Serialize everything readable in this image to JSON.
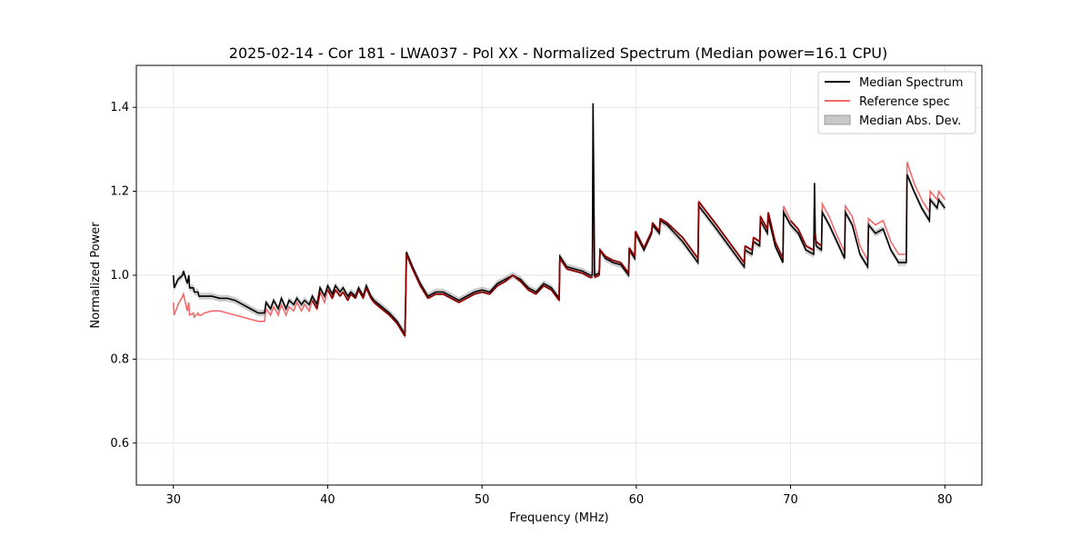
{
  "chart_data": {
    "type": "line",
    "title": "2025-02-14 - Cor 181 - LWA037 - Pol XX - Normalized Spectrum (Median power=16.1 CPU)",
    "xlabel": "Frequency (MHz)",
    "ylabel": "Normalized Power",
    "xlim": [
      27.6,
      82.4
    ],
    "ylim": [
      0.5,
      1.5
    ],
    "xticks": [
      30,
      40,
      50,
      60,
      70,
      80
    ],
    "yticks": [
      0.6,
      0.8,
      1.0,
      1.2,
      1.4
    ],
    "xtick_labels": [
      "30",
      "40",
      "50",
      "60",
      "70",
      "80"
    ],
    "ytick_labels": [
      "0.6",
      "0.8",
      "1.0",
      "1.2",
      "1.4"
    ],
    "grid": true,
    "legend_position": "top-right",
    "legend": [
      {
        "label": "Median Spectrum",
        "color": "#000000",
        "kind": "line"
      },
      {
        "label": "Reference spec",
        "color": "#f26b6b",
        "kind": "line"
      },
      {
        "label": "Median Abs. Dev.",
        "color": "#c8c8c8",
        "kind": "patch"
      }
    ],
    "mad_halfwidth": 0.008,
    "series": [
      {
        "name": "Median Spectrum",
        "color": "#000000",
        "x": [
          30.0,
          30.05,
          30.3,
          30.6,
          30.65,
          30.9,
          31.0,
          31.05,
          31.3,
          31.35,
          31.6,
          31.65,
          31.8,
          32.0,
          32.5,
          33.0,
          33.5,
          34.0,
          34.5,
          35.0,
          35.5,
          35.9,
          36.0,
          36.3,
          36.5,
          36.8,
          37.0,
          37.3,
          37.5,
          37.8,
          38.0,
          38.3,
          38.5,
          38.8,
          39.0,
          39.3,
          39.5,
          39.8,
          40.0,
          40.3,
          40.5,
          40.8,
          41.0,
          41.3,
          41.5,
          41.8,
          42.0,
          42.3,
          42.5,
          42.8,
          43.0,
          43.5,
          44.0,
          44.5,
          45.0,
          45.05,
          45.1,
          45.5,
          46.0,
          46.5,
          47.0,
          47.5,
          48.0,
          48.5,
          49.0,
          49.5,
          50.0,
          50.5,
          51.0,
          51.5,
          52.0,
          52.5,
          53.0,
          53.5,
          54.0,
          54.5,
          55.0,
          55.05,
          55.5,
          56.0,
          56.5,
          57.0,
          57.15,
          57.2,
          57.25,
          57.3,
          57.6,
          57.65,
          58.0,
          58.5,
          59.0,
          59.5,
          59.55,
          59.9,
          59.95,
          60.5,
          61.0,
          61.05,
          61.5,
          61.55,
          62.0,
          63.0,
          64.0,
          64.05,
          65.0,
          66.0,
          67.0,
          67.05,
          67.5,
          67.6,
          68.0,
          68.05,
          68.5,
          68.55,
          69.0,
          69.5,
          69.55,
          70.0,
          70.5,
          71.0,
          71.5,
          71.55,
          71.6,
          71.65,
          72.0,
          72.05,
          72.5,
          73.0,
          73.5,
          73.55,
          74.0,
          74.5,
          75.0,
          75.05,
          75.5,
          76.0,
          76.5,
          77.0,
          77.5,
          77.55,
          78.0,
          78.5,
          79.0,
          79.05,
          79.5,
          79.6,
          80.0
        ],
        "y": [
          1.0,
          0.97,
          0.99,
          1.0,
          1.01,
          0.98,
          1.0,
          0.97,
          0.97,
          0.96,
          0.96,
          0.95,
          0.95,
          0.95,
          0.95,
          0.945,
          0.945,
          0.94,
          0.93,
          0.92,
          0.91,
          0.91,
          0.935,
          0.92,
          0.94,
          0.92,
          0.945,
          0.92,
          0.94,
          0.93,
          0.945,
          0.93,
          0.94,
          0.93,
          0.95,
          0.93,
          0.97,
          0.95,
          0.975,
          0.955,
          0.975,
          0.96,
          0.97,
          0.95,
          0.96,
          0.95,
          0.97,
          0.95,
          0.975,
          0.95,
          0.94,
          0.925,
          0.91,
          0.89,
          0.86,
          0.93,
          1.055,
          1.02,
          0.98,
          0.95,
          0.96,
          0.96,
          0.95,
          0.94,
          0.95,
          0.96,
          0.965,
          0.96,
          0.98,
          0.99,
          1.0,
          0.99,
          0.97,
          0.96,
          0.98,
          0.97,
          0.945,
          1.045,
          1.02,
          1.015,
          1.01,
          1.0,
          1.0,
          1.41,
          1.2,
          1.0,
          1.005,
          1.06,
          1.04,
          1.03,
          1.025,
          1.0,
          1.06,
          1.04,
          1.1,
          1.06,
          1.1,
          1.12,
          1.1,
          1.13,
          1.12,
          1.08,
          1.03,
          1.165,
          1.12,
          1.07,
          1.02,
          1.06,
          1.05,
          1.08,
          1.07,
          1.13,
          1.1,
          1.14,
          1.07,
          1.03,
          1.15,
          1.12,
          1.1,
          1.06,
          1.05,
          1.22,
          1.09,
          1.07,
          1.06,
          1.15,
          1.12,
          1.08,
          1.04,
          1.15,
          1.12,
          1.05,
          1.02,
          1.12,
          1.1,
          1.11,
          1.06,
          1.03,
          1.03,
          1.24,
          1.2,
          1.16,
          1.13,
          1.18,
          1.16,
          1.18,
          1.16
        ]
      },
      {
        "name": "Reference spec",
        "color": "#f26b6b",
        "x": [
          30.0,
          30.05,
          30.3,
          30.6,
          30.65,
          30.9,
          31.0,
          31.05,
          31.3,
          31.35,
          31.6,
          31.65,
          31.8,
          32.0,
          32.5,
          33.0,
          33.5,
          34.0,
          34.5,
          35.0,
          35.5,
          35.9,
          36.0,
          36.3,
          36.5,
          36.8,
          37.0,
          37.3,
          37.5,
          37.8,
          38.0,
          38.3,
          38.5,
          38.8,
          39.0,
          39.3,
          39.5,
          39.8,
          40.0,
          40.3,
          40.5,
          40.8,
          41.0,
          41.3,
          41.5,
          41.8,
          42.0,
          42.3,
          42.5,
          42.8,
          43.0,
          43.5,
          44.0,
          44.5,
          45.0,
          45.05,
          45.1,
          45.5,
          46.0,
          46.5,
          47.0,
          47.5,
          48.0,
          48.5,
          49.0,
          49.5,
          50.0,
          50.5,
          51.0,
          51.5,
          52.0,
          52.5,
          53.0,
          53.5,
          54.0,
          54.5,
          55.0,
          55.05,
          55.5,
          56.0,
          56.5,
          57.0,
          57.15,
          57.2,
          57.25,
          57.3,
          57.6,
          57.65,
          58.0,
          58.5,
          59.0,
          59.5,
          59.55,
          59.9,
          59.95,
          60.5,
          61.0,
          61.05,
          61.5,
          61.55,
          62.0,
          63.0,
          64.0,
          64.05,
          65.0,
          66.0,
          67.0,
          67.05,
          67.5,
          67.6,
          68.0,
          68.05,
          68.5,
          68.55,
          69.0,
          69.5,
          69.55,
          70.0,
          70.5,
          71.0,
          71.5,
          71.55,
          71.6,
          71.65,
          72.0,
          72.05,
          72.5,
          73.0,
          73.5,
          73.55,
          74.0,
          74.5,
          75.0,
          75.05,
          75.5,
          76.0,
          76.5,
          77.0,
          77.5,
          77.55,
          78.0,
          78.5,
          79.0,
          79.05,
          79.5,
          79.6,
          80.0
        ],
        "y": [
          0.935,
          0.905,
          0.93,
          0.95,
          0.955,
          0.915,
          0.935,
          0.905,
          0.91,
          0.9,
          0.91,
          0.905,
          0.905,
          0.91,
          0.915,
          0.915,
          0.91,
          0.905,
          0.9,
          0.895,
          0.89,
          0.89,
          0.92,
          0.905,
          0.925,
          0.905,
          0.93,
          0.905,
          0.925,
          0.915,
          0.935,
          0.915,
          0.93,
          0.915,
          0.94,
          0.92,
          0.96,
          0.935,
          0.965,
          0.945,
          0.965,
          0.95,
          0.96,
          0.94,
          0.955,
          0.945,
          0.965,
          0.945,
          0.97,
          0.945,
          0.935,
          0.92,
          0.905,
          0.885,
          0.855,
          0.925,
          1.05,
          1.015,
          0.975,
          0.945,
          0.955,
          0.955,
          0.945,
          0.935,
          0.945,
          0.955,
          0.96,
          0.955,
          0.975,
          0.985,
          1.0,
          0.985,
          0.965,
          0.955,
          0.975,
          0.965,
          0.94,
          1.04,
          1.015,
          1.01,
          1.005,
          0.995,
          0.995,
          1.2,
          1.1,
          0.995,
          1.0,
          1.06,
          1.045,
          1.035,
          1.03,
          1.005,
          1.065,
          1.045,
          1.105,
          1.065,
          1.105,
          1.125,
          1.105,
          1.135,
          1.125,
          1.09,
          1.04,
          1.175,
          1.13,
          1.08,
          1.03,
          1.07,
          1.06,
          1.09,
          1.08,
          1.14,
          1.11,
          1.15,
          1.08,
          1.04,
          1.165,
          1.13,
          1.11,
          1.07,
          1.06,
          1.195,
          1.1,
          1.08,
          1.07,
          1.17,
          1.14,
          1.095,
          1.055,
          1.165,
          1.14,
          1.07,
          1.035,
          1.135,
          1.12,
          1.13,
          1.08,
          1.05,
          1.05,
          1.27,
          1.22,
          1.18,
          1.15,
          1.2,
          1.18,
          1.2,
          1.18
        ]
      }
    ]
  }
}
